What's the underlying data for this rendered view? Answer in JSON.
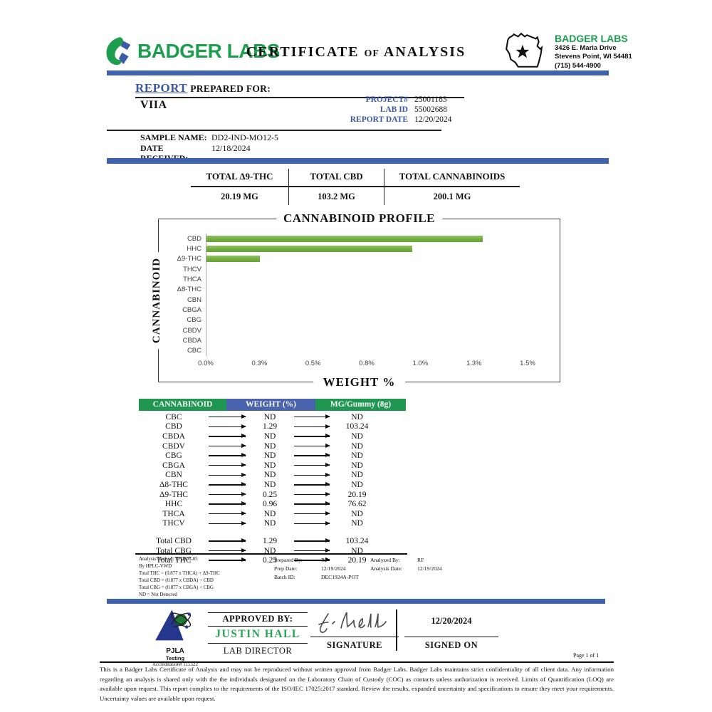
{
  "colors": {
    "accent_blue": "#4062ad",
    "label_blue": "#3a57a7",
    "brand_green": "#1d9e4f",
    "table_header_green": "#1f9750",
    "table_header_blue": "#4a63ae",
    "bar_green": "#76b041",
    "approver_green": "#27a455"
  },
  "header": {
    "brand_name": "BADGER LABS",
    "title_part1": "CERTIFICATE",
    "title_of": "OF",
    "title_part2": "ANALYSIS",
    "lab_info": {
      "name": "BADGER LABS",
      "address_line1": "3426 E. Maria Drive",
      "address_line2": "Stevens Point, WI 54481",
      "phone": "(715) 544-4900"
    }
  },
  "report": {
    "heading_primary": "REPORT",
    "heading_secondary": "PREPARED FOR:",
    "client": "VIIA",
    "fields": [
      {
        "label": "PROJECT#",
        "value": "25001183"
      },
      {
        "label": "LAB ID",
        "value": "55002688"
      },
      {
        "label": "REPORT DATE",
        "value": "12/20/2024"
      }
    ],
    "sample_name_label": "SAMPLE NAME:",
    "sample_name": "DD2-IND-MO12-5",
    "date_received_label": "DATE RECEIVED:",
    "date_received": "12/18/2024"
  },
  "totals": [
    {
      "label": "TOTAL Δ9-THC",
      "value": "20.19 MG"
    },
    {
      "label": "TOTAL CBD",
      "value": "103.2 MG"
    },
    {
      "label": "TOTAL CANNABINOIDS",
      "value": "200.1 MG"
    }
  ],
  "chart_data": {
    "type": "bar",
    "orientation": "horizontal",
    "title": "CANNABINOID PROFILE",
    "xlabel": "WEIGHT %",
    "ylabel": "CANNABINOID",
    "categories": [
      "CBD",
      "HHC",
      "Δ9-THC",
      "THCV",
      "THCA",
      "Δ8-THC",
      "CBN",
      "CBGA",
      "CBG",
      "CBDV",
      "CBDA",
      "CBC"
    ],
    "values": [
      1.29,
      0.96,
      0.25,
      0,
      0,
      0,
      0,
      0,
      0,
      0,
      0,
      0
    ],
    "xlim": [
      0,
      1.5
    ],
    "x_ticks": [
      "0.0%",
      "0.3%",
      "0.5%",
      "0.8%",
      "1.0%",
      "1.3%",
      "1.5%"
    ],
    "grid": false,
    "legend": false,
    "bar_color": "#76b041"
  },
  "results_table": {
    "headers": [
      "CANNABINOID",
      "WEIGHT (%)",
      "MG/Gummy (8g)"
    ],
    "rows": [
      [
        "CBC",
        "ND",
        "ND"
      ],
      [
        "CBD",
        "1.29",
        "103.24"
      ],
      [
        "CBDA",
        "ND",
        "ND"
      ],
      [
        "CBDV",
        "ND",
        "ND"
      ],
      [
        "CBG",
        "ND",
        "ND"
      ],
      [
        "CBGA",
        "ND",
        "ND"
      ],
      [
        "CBN",
        "ND",
        "ND"
      ],
      [
        "Δ8-THC",
        "ND",
        "ND"
      ],
      [
        "Δ9-THC",
        "0.25",
        "20.19"
      ],
      [
        "HHC",
        "0.96",
        "76.62"
      ],
      [
        "THCA",
        "ND",
        "ND"
      ],
      [
        "THCV",
        "ND",
        "ND"
      ]
    ],
    "total_rows": [
      [
        "Total CBD",
        "1.29",
        "103.24"
      ],
      [
        "Total CBG",
        "ND",
        "ND"
      ],
      [
        "Total THC",
        "0.25",
        "20.19"
      ]
    ]
  },
  "footnotes": {
    "method_lines": [
      "Analysis Method: TP-POT-05",
      "By HPLC-VWD",
      "Total THC = (0.877 x  THCA) + Δ9-THC",
      "Total CBD = (0.877 x  CBDA) + CBD",
      "Total CBG = (0.877 x  CBGA) + CBG",
      "ND = Not Detected"
    ],
    "prep": [
      {
        "label": "Prepared By:",
        "value": "RF"
      },
      {
        "label": "Prep Date:",
        "value": "12/19/2024"
      },
      {
        "label": "Batch ID:",
        "value": "DEC1924A-POT"
      }
    ],
    "analysis": [
      {
        "label": "Analyzed By:",
        "value": "RF"
      },
      {
        "label": "Analysis Date:",
        "value": "12/19/2024"
      }
    ]
  },
  "approval": {
    "accreditation_org": "PJLA",
    "accreditation_type": "Testing",
    "accreditation_number": "Accreditation# 115522",
    "approved_by_label": "APPROVED BY:",
    "approver_name": "JUSTIN HALL",
    "approver_title": "LAB DIRECTOR",
    "signature_label": "SIGNATURE",
    "signed_on_label": "SIGNED ON",
    "signed_date": "12/20/2024"
  },
  "footer": {
    "page_label": "Page 1 of 1",
    "disclaimer": "This is a Badger Labs Certificate of Analysis and may not be reproduced without written approval from Badger Labs. Badger Labs maintains strict confidentiality of all client data. Any information regarding an analysis is shared only with the the individuals designated on the Laboratory Chain of Custody (COC) as contacts unless authorization is received. Limits of Quantification (LOQ) are available upon request. This report complies to the requirements of the ISO/IEC 17025:2017 standard. Review the results, expanded uncertainty and specifications to ensure they meet your requirements. Uncertainty values are available upon request."
  }
}
